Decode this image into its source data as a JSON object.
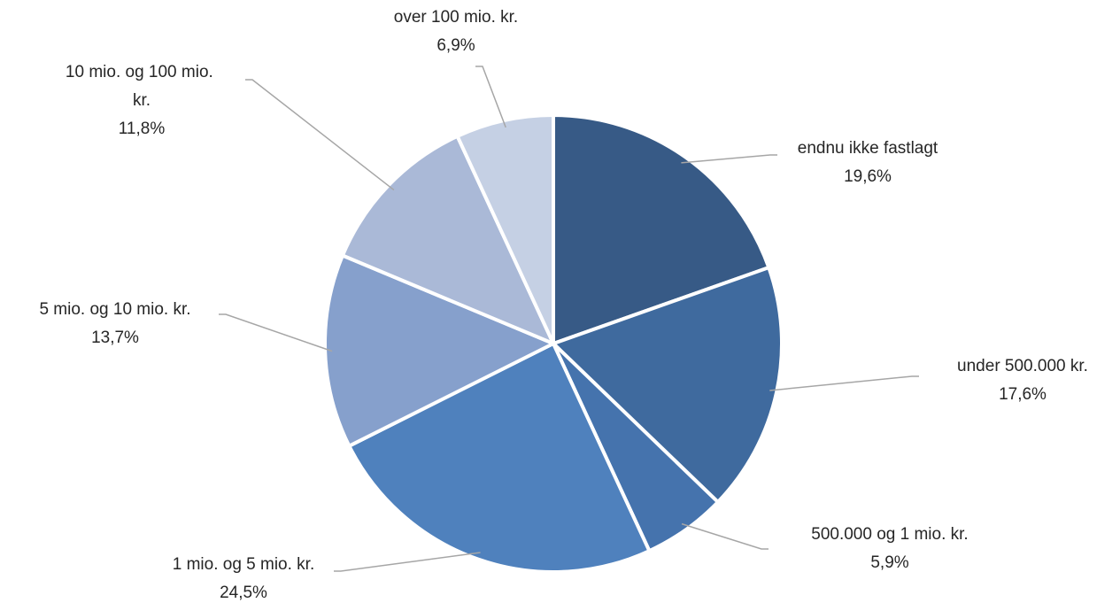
{
  "chart_data": {
    "type": "pie",
    "categories": [
      "endnu ikke fastlagt",
      "under 500.000 kr.",
      "500.000 og 1 mio. kr.",
      "1 mio. og 5 mio. kr.",
      "5 mio. og 10 mio. kr.",
      "10 mio. og 100 mio. kr.",
      "over 100 mio. kr."
    ],
    "values": [
      19.6,
      17.6,
      5.9,
      24.5,
      13.7,
      11.8,
      6.9
    ],
    "value_labels": [
      "19,6%",
      "17,6%",
      "5,9%",
      "24,5%",
      "13,7%",
      "11,8%",
      "6,9%"
    ],
    "colors": [
      "#375a86",
      "#3f6a9e",
      "#4573ad",
      "#4f81bd",
      "#86a0cc",
      "#aab9d7",
      "#c5d0e4"
    ]
  }
}
